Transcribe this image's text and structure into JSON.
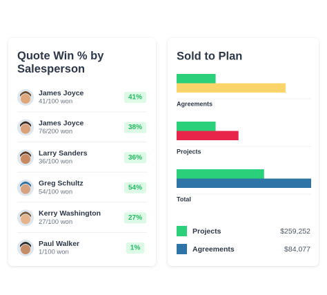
{
  "quote_card": {
    "title": "Quote Win % by Salesperson",
    "people": [
      {
        "name": "James Joyce",
        "record": "41/100 won",
        "win": "41%"
      },
      {
        "name": "James Joyce",
        "record": "76/200 won",
        "win": "38%"
      },
      {
        "name": "Larry Sanders",
        "record": "36/100 won",
        "win": "36%"
      },
      {
        "name": "Greg Schultz",
        "record": "54/100 won",
        "win": "54%"
      },
      {
        "name": "Kerry Washington",
        "record": "27/100 won",
        "win": "27%"
      },
      {
        "name": "Paul Walker",
        "record": "1/100 won",
        "win": "1%"
      }
    ]
  },
  "chart_data": {
    "type": "bar",
    "orientation": "horizontal",
    "title": "Sold to Plan",
    "categories": [
      "Agreements",
      "Projects",
      "Total"
    ],
    "series": [
      {
        "name": "Projects",
        "color": "#2bd17a",
        "values": [
          29,
          29,
          65
        ],
        "amount": "$259,252"
      },
      {
        "name": "Agreements",
        "color": "#2f74a6",
        "colors": [
          "#fdd46a",
          "#e8244a",
          "#2f74a6"
        ],
        "values": [
          81,
          46,
          100
        ],
        "amount": "$84,077"
      }
    ],
    "xlim": [
      0,
      100
    ]
  }
}
